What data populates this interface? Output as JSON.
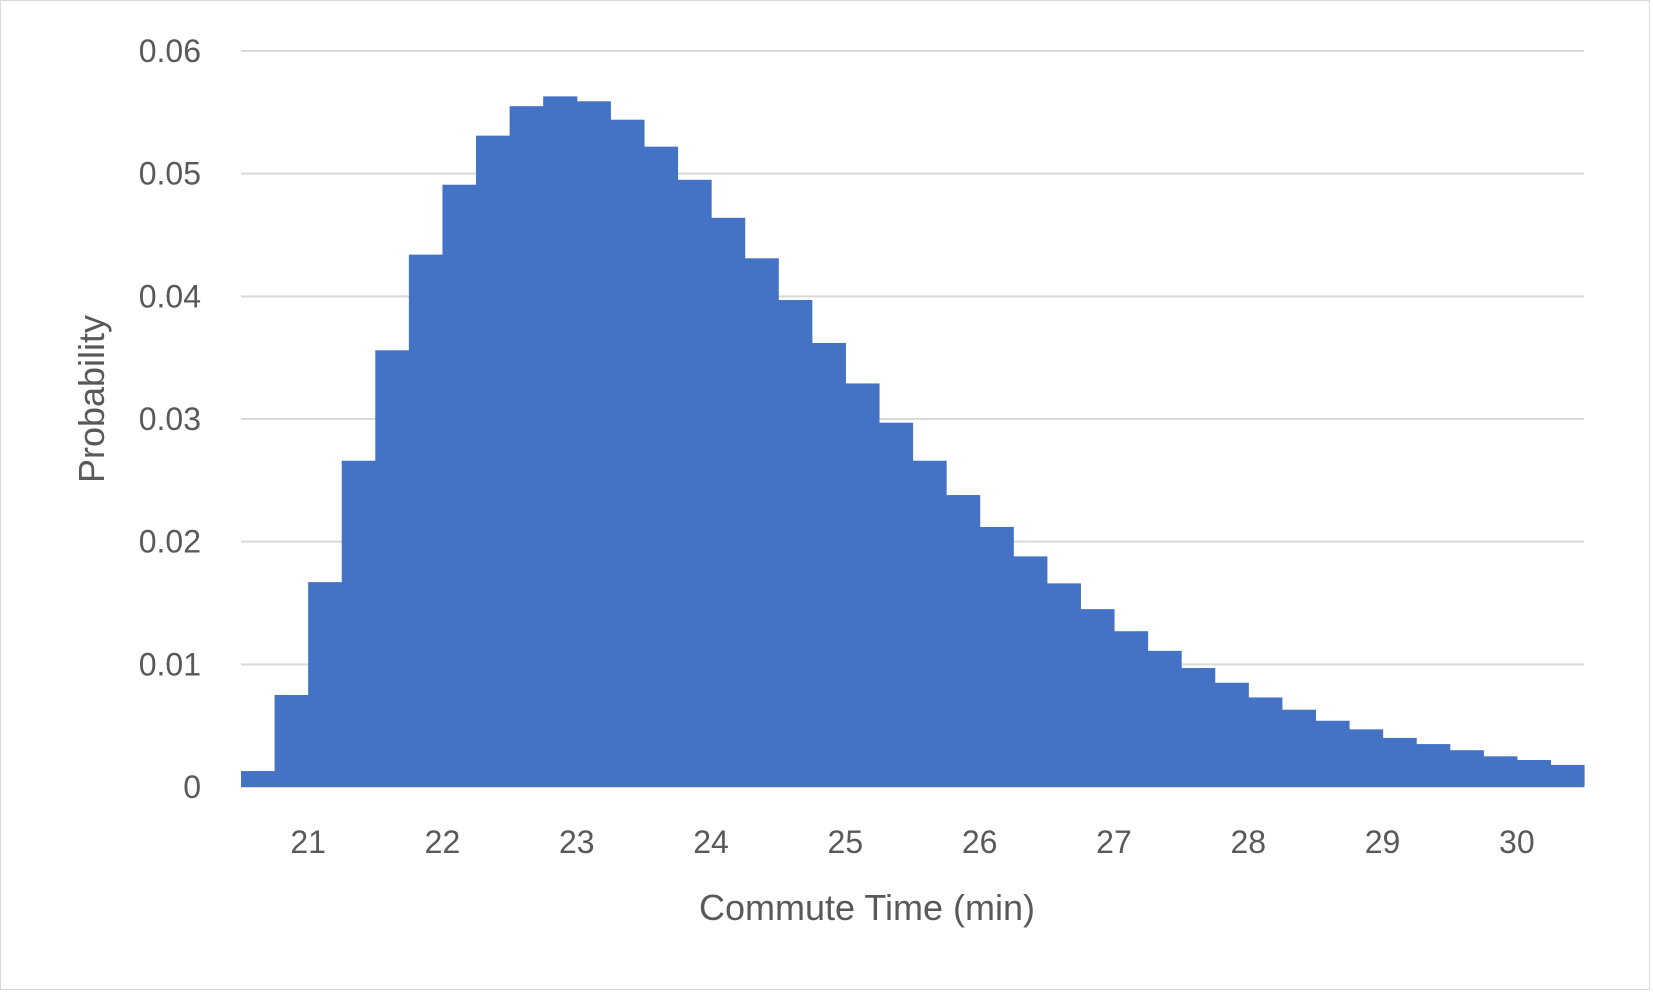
{
  "chart_data": {
    "type": "bar",
    "title": "",
    "xlabel": "Commute Time (min)",
    "ylabel": "Probability",
    "bar_color": "#4472C4",
    "grid_color": "#D9D9D9",
    "text_color": "#595959",
    "grid": true,
    "legend": "none",
    "xlim": [
      20.5,
      30.5
    ],
    "ylim": [
      0,
      0.06
    ],
    "bin_width": 0.25,
    "x_ticks": [
      21,
      22,
      23,
      24,
      25,
      26,
      27,
      28,
      29,
      30
    ],
    "y_ticks": [
      "0",
      "0.01",
      "0.02",
      "0.03",
      "0.04",
      "0.05",
      "0.06"
    ],
    "series": [
      {
        "bins_start": [
          20.5,
          20.75,
          21.0,
          21.25,
          21.5,
          21.75,
          22.0,
          22.25,
          22.5,
          22.75,
          23.0,
          23.25,
          23.5,
          23.75,
          24.0,
          24.25,
          24.5,
          24.75,
          25.0,
          25.25,
          25.5,
          25.75,
          26.0,
          26.25,
          26.5,
          26.75,
          27.0,
          27.25,
          27.5,
          27.75,
          28.0,
          28.25,
          28.5,
          28.75,
          29.0,
          29.25,
          29.5,
          29.75,
          30.0,
          30.25
        ],
        "values": [
          0.0013,
          0.0075,
          0.0167,
          0.0266,
          0.0356,
          0.0434,
          0.0491,
          0.0531,
          0.0555,
          0.0563,
          0.0559,
          0.0544,
          0.0522,
          0.0495,
          0.0464,
          0.0431,
          0.0397,
          0.0362,
          0.0329,
          0.0297,
          0.0266,
          0.0238,
          0.0212,
          0.0188,
          0.0166,
          0.0145,
          0.0127,
          0.0111,
          0.0097,
          0.0085,
          0.0073,
          0.0063,
          0.0054,
          0.0047,
          0.004,
          0.0035,
          0.003,
          0.0025,
          0.0022,
          0.0018
        ]
      }
    ]
  }
}
